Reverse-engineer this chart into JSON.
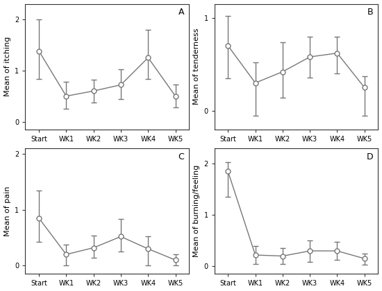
{
  "subplots": [
    {
      "label": "A",
      "ylabel": "Mean of itching",
      "ylim": [
        -0.15,
        2.3
      ],
      "yticks": [
        0,
        1,
        2
      ],
      "means": [
        1.38,
        0.5,
        0.6,
        0.72,
        1.25,
        0.5
      ],
      "errors_low": [
        0.55,
        0.25,
        0.22,
        0.28,
        0.42,
        0.22
      ],
      "errors_high": [
        0.62,
        0.28,
        0.22,
        0.3,
        0.55,
        0.22
      ]
    },
    {
      "label": "B",
      "ylabel": "Mean of tenderness",
      "ylim": [
        -0.2,
        1.15
      ],
      "yticks": [
        0,
        1
      ],
      "means": [
        0.7,
        0.3,
        0.42,
        0.58,
        0.62,
        0.25
      ],
      "errors_low": [
        0.35,
        0.35,
        0.28,
        0.22,
        0.22,
        0.3
      ],
      "errors_high": [
        0.32,
        0.22,
        0.32,
        0.22,
        0.18,
        0.12
      ]
    },
    {
      "label": "C",
      "ylabel": "Mean of pain",
      "ylim": [
        -0.15,
        2.1
      ],
      "yticks": [
        0,
        1,
        2
      ],
      "means": [
        0.85,
        0.2,
        0.32,
        0.52,
        0.3,
        0.1
      ],
      "errors_low": [
        0.42,
        0.2,
        0.18,
        0.27,
        0.3,
        0.1
      ],
      "errors_high": [
        0.5,
        0.18,
        0.22,
        0.32,
        0.22,
        0.1
      ]
    },
    {
      "label": "D",
      "ylabel": "Mean of burning/feeling",
      "ylim": [
        -0.15,
        2.3
      ],
      "yticks": [
        0,
        1,
        2
      ],
      "means": [
        1.85,
        0.22,
        0.2,
        0.3,
        0.3,
        0.15
      ],
      "errors_low": [
        0.5,
        0.18,
        0.15,
        0.22,
        0.18,
        0.12
      ],
      "errors_high": [
        0.18,
        0.18,
        0.15,
        0.2,
        0.18,
        0.1
      ]
    }
  ],
  "xticklabels": [
    "Start",
    "WK1",
    "WK2",
    "WK3",
    "WK4",
    "WK5"
  ],
  "line_color": "#777777",
  "marker_size": 5,
  "error_color": "#777777",
  "capsize": 3,
  "bg_color": "#ffffff",
  "fig_bg_color": "#ffffff",
  "fontsize_label": 8,
  "fontsize_tick": 7,
  "fontsize_sublabel": 9
}
